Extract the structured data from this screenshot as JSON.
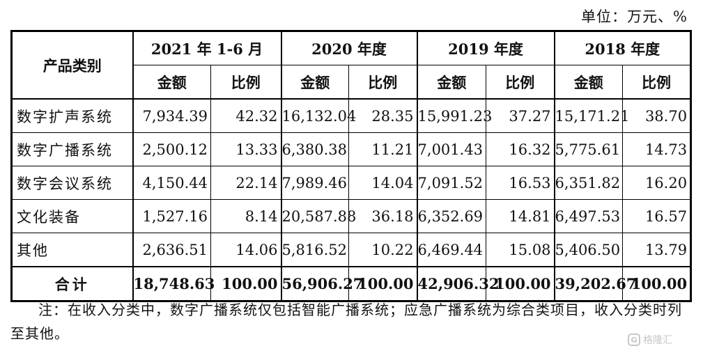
{
  "unit_label": "单位：万元、%",
  "header": {
    "category": "产品类别",
    "periods": [
      "2021 年 1-6 月",
      "2020 年度",
      "2019 年度",
      "2018 年度"
    ],
    "amount": "金额",
    "ratio": "比例"
  },
  "rows": [
    {
      "name": "数字扩声系统",
      "vals": [
        "7,934.39",
        "42.32",
        "16,132.04",
        "28.35",
        "15,991.23",
        "37.27",
        "15,171.21",
        "38.70"
      ]
    },
    {
      "name": "数字广播系统",
      "vals": [
        "2,500.12",
        "13.33",
        "6,380.38",
        "11.21",
        "7,001.43",
        "16.32",
        "5,775.61",
        "14.73"
      ]
    },
    {
      "name": "数字会议系统",
      "vals": [
        "4,150.44",
        "22.14",
        "7,989.46",
        "14.04",
        "7,091.52",
        "16.53",
        "6,351.82",
        "16.20"
      ]
    },
    {
      "name": "文化装备",
      "vals": [
        "1,527.16",
        "8.14",
        "20,587.88",
        "36.18",
        "6,352.69",
        "14.81",
        "6,497.53",
        "16.57"
      ]
    },
    {
      "name": "其他",
      "vals": [
        "2,636.51",
        "14.06",
        "5,816.52",
        "10.22",
        "6,469.44",
        "15.08",
        "5,406.50",
        "13.79"
      ]
    }
  ],
  "total": {
    "name": "合计",
    "vals": [
      "18,748.63",
      "100.00",
      "56,906.27",
      "100.00",
      "42,906.32",
      "100.00",
      "39,202.67",
      "100.00"
    ]
  },
  "note": "注：在收入分类中，数字广播系统仅包括智能广播系统；应急广播系统为综合类项目，收入分类时列至其他。",
  "watermark": {
    "mark": "G",
    "text": "格隆汇"
  }
}
